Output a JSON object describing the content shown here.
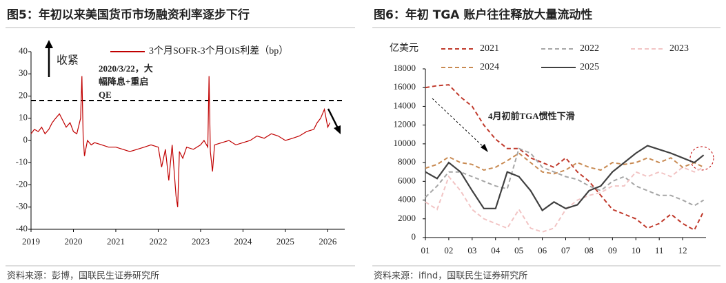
{
  "chart_data": [
    {
      "type": "line",
      "title": "图5：年初以来美国货币市场融资利率逐步下行",
      "source": "资料来源：彭博，国联民生证券研究所",
      "x": [
        2019.0,
        2019.08,
        2019.17,
        2019.25,
        2019.33,
        2019.42,
        2019.5,
        2019.58,
        2019.67,
        2019.75,
        2019.83,
        2019.92,
        2020.0,
        2020.08,
        2020.17,
        2020.2,
        2020.23,
        2020.26,
        2020.33,
        2020.42,
        2020.5,
        2020.67,
        2020.83,
        2021.0,
        2021.17,
        2021.33,
        2021.5,
        2021.67,
        2021.83,
        2022.0,
        2022.08,
        2022.17,
        2022.25,
        2022.33,
        2022.42,
        2022.46,
        2022.5,
        2022.58,
        2022.67,
        2022.83,
        2023.0,
        2023.08,
        2023.17,
        2023.2,
        2023.23,
        2023.28,
        2023.33,
        2023.5,
        2023.67,
        2023.83,
        2024.0,
        2024.17,
        2024.33,
        2024.5,
        2024.67,
        2024.83,
        2025.0,
        2025.17,
        2025.33,
        2025.5,
        2025.67,
        2025.75,
        2025.83,
        2025.92,
        2026.0,
        2026.05
      ],
      "series": [
        {
          "name": "3个月SOFR-3个月OIS利差（bp）",
          "color": "#c00000",
          "style": "solid",
          "values": [
            3,
            5,
            4,
            6,
            3,
            5,
            8,
            10,
            12,
            9,
            6,
            8,
            4,
            3,
            10,
            29,
            2,
            -7,
            0,
            -2,
            -1,
            -2,
            -3,
            -3,
            -4,
            -5,
            -4,
            -3,
            -2,
            -3,
            -12,
            -4,
            -18,
            -2,
            -25,
            -30,
            -5,
            -8,
            -3,
            -4,
            -2,
            0,
            -3,
            29,
            -5,
            -14,
            -2,
            -1,
            0,
            -2,
            -1,
            0,
            2,
            1,
            3,
            2,
            0,
            1,
            2,
            4,
            5,
            8,
            10,
            14,
            6,
            8
          ]
        }
      ],
      "xlim": [
        2019,
        2026.4
      ],
      "xticks": [
        2019,
        2020,
        2021,
        2022,
        2023,
        2024,
        2025,
        2026
      ],
      "ylim": [
        -40,
        40
      ],
      "yticks": [
        -40,
        -30,
        -20,
        -10,
        0,
        10,
        20,
        30,
        40
      ],
      "reference_line": 18,
      "annotations": [
        "收紧",
        "2020/3/22，大",
        "幅降息+重启",
        "QE"
      ]
    },
    {
      "type": "line",
      "title": "图6：年初 TGA 账户往往释放大量流动性",
      "source": "资料来源：ifind，国联民生证券研究所",
      "y_label": "亿美元",
      "x": [
        1,
        1.5,
        2,
        2.5,
        3,
        3.5,
        4,
        4.5,
        5,
        5.5,
        6,
        6.5,
        7,
        7.5,
        8,
        8.5,
        9,
        9.5,
        10,
        10.5,
        11,
        11.5,
        12,
        12.5,
        12.9
      ],
      "series": [
        {
          "name": "2021",
          "color": "#c0392b",
          "style": "dashed",
          "values": [
            16000,
            16200,
            16300,
            15000,
            14000,
            12000,
            10500,
            9500,
            9500,
            8500,
            8000,
            7500,
            8500,
            7000,
            6000,
            4500,
            3000,
            2500,
            2000,
            1000,
            1500,
            2500,
            1500,
            800,
            2800
          ]
        },
        {
          "name": "2022",
          "color": "#a6a6a6",
          "style": "dashed",
          "values": [
            4300,
            5500,
            7000,
            7000,
            6500,
            6000,
            5500,
            5200,
            9500,
            9000,
            7500,
            7000,
            6500,
            6200,
            5500,
            5000,
            6000,
            6500,
            5500,
            5000,
            4500,
            4500,
            4000,
            3400,
            4000
          ]
        },
        {
          "name": "2023",
          "color": "#f2c4c4",
          "style": "dashed",
          "values": [
            3800,
            3000,
            6500,
            5000,
            3000,
            2000,
            1500,
            1000,
            3000,
            1000,
            600,
            1000,
            3000,
            4000,
            4500,
            4800,
            5500,
            5500,
            7000,
            6500,
            7000,
            6500,
            7500,
            7000,
            7500
          ]
        },
        {
          "name": "2024",
          "color": "#c88a52",
          "style": "dashed",
          "values": [
            7400,
            7800,
            8600,
            8000,
            7800,
            7200,
            7500,
            8200,
            9000,
            8000,
            7000,
            6800,
            7200,
            8000,
            7500,
            7200,
            8000,
            7800,
            8000,
            8500,
            8000,
            8500,
            7500,
            8000,
            7500
          ]
        },
        {
          "name": "2025",
          "color": "#404040",
          "style": "solid",
          "values": [
            7000,
            6300,
            8000,
            7000,
            5000,
            3100,
            3100,
            7000,
            6500,
            5000,
            2900,
            3800,
            3100,
            3500,
            5000,
            5500,
            7000,
            8000,
            9000,
            9800,
            9400,
            9000,
            8500,
            8000,
            8800
          ]
        }
      ],
      "xlim": [
        1,
        13
      ],
      "xticks": [
        {
          "value": 1,
          "label": "01"
        },
        {
          "value": 2,
          "label": "02"
        },
        {
          "value": 3,
          "label": "03"
        },
        {
          "value": 4,
          "label": "04"
        },
        {
          "value": 5,
          "label": "05"
        },
        {
          "value": 6,
          "label": "06"
        },
        {
          "value": 7,
          "label": "07"
        },
        {
          "value": 8,
          "label": "08"
        },
        {
          "value": 9,
          "label": "09"
        },
        {
          "value": 10,
          "label": "10"
        },
        {
          "value": 11,
          "label": "11"
        },
        {
          "value": 12,
          "label": "12"
        }
      ],
      "ylim": [
        0,
        18000
      ],
      "yticks": [
        0,
        2000,
        4000,
        6000,
        8000,
        10000,
        12000,
        14000,
        16000,
        18000
      ],
      "annotations": [
        "4月初前TGA惯性下滑"
      ]
    }
  ]
}
